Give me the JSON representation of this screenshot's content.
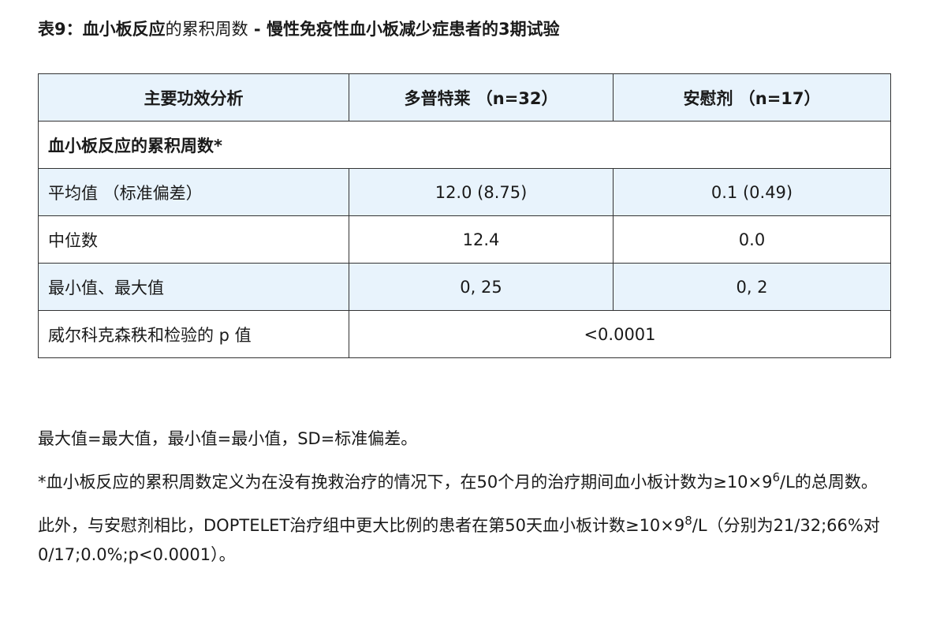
{
  "title": {
    "prefix": "表9：",
    "strong1": "血小板反应",
    "normal": "的累积周数",
    "dash": " - ",
    "strong2": "慢性免疫性血小板减少症患者的3期试验"
  },
  "table": {
    "headers": [
      "主要功效分析",
      "多普特莱 （n=32）",
      "安慰剂 （n=17）"
    ],
    "section_label": "血小板反应的累积周数*",
    "rows": [
      {
        "label": "平均值 （标准偏差）",
        "drug": "12.0 (8.75)",
        "placebo": "0.1 (0.49)"
      },
      {
        "label": "中位数",
        "drug": "12.4",
        "placebo": "0.0"
      },
      {
        "label": "最小值、最大值",
        "drug": "0, 25",
        "placebo": "0, 2"
      }
    ],
    "pvalue": {
      "label": "威尔科克森秩和检验的 p 值",
      "value": "<0.0001"
    }
  },
  "notes": {
    "abbrev": "最大值=最大值，最小值=最小值，SD=标准偏差。",
    "footnote_a": "*血小板反应的累积周数定义为在没有挽救治疗的情况下，在50个月的治疗期间血小板计数为≥10×9",
    "footnote_sup": "6",
    "footnote_b": "/L的总周数。",
    "extra_a": "此外，与安慰剂相比，DOPTELET治疗组中更大比例的患者在第50天血小板计数≥10×9",
    "extra_sup": "8",
    "extra_b": "/L（分别为21/32;66%对0/17;0.0%;p<0.0001）。"
  }
}
